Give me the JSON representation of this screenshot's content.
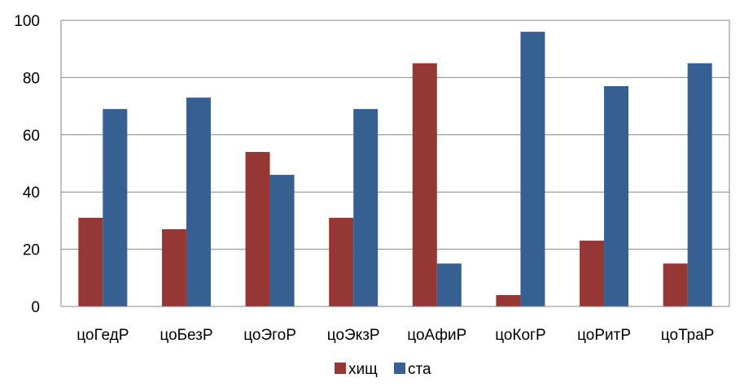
{
  "chart_data": {
    "type": "bar",
    "categories": [
      "цоГедР",
      "цоБезР",
      "цоЭгоР",
      "цоЭкзР",
      "цоАфиР",
      "цоКогР",
      "цоРитР",
      "цоТраР"
    ],
    "series": [
      {
        "name": "хищ",
        "values": [
          31,
          27,
          54,
          31,
          85,
          4,
          23,
          15
        ],
        "color": "#953735"
      },
      {
        "name": "ста",
        "values": [
          69,
          73,
          46,
          69,
          15,
          96,
          77,
          85
        ],
        "color": "#376092"
      }
    ],
    "yticks": [
      0,
      20,
      40,
      60,
      80,
      100
    ],
    "ylim": [
      0,
      100
    ],
    "grid": true,
    "legend_position": "bottom-center",
    "gridline_color": "#868686",
    "plot_border_color": "#868686"
  }
}
